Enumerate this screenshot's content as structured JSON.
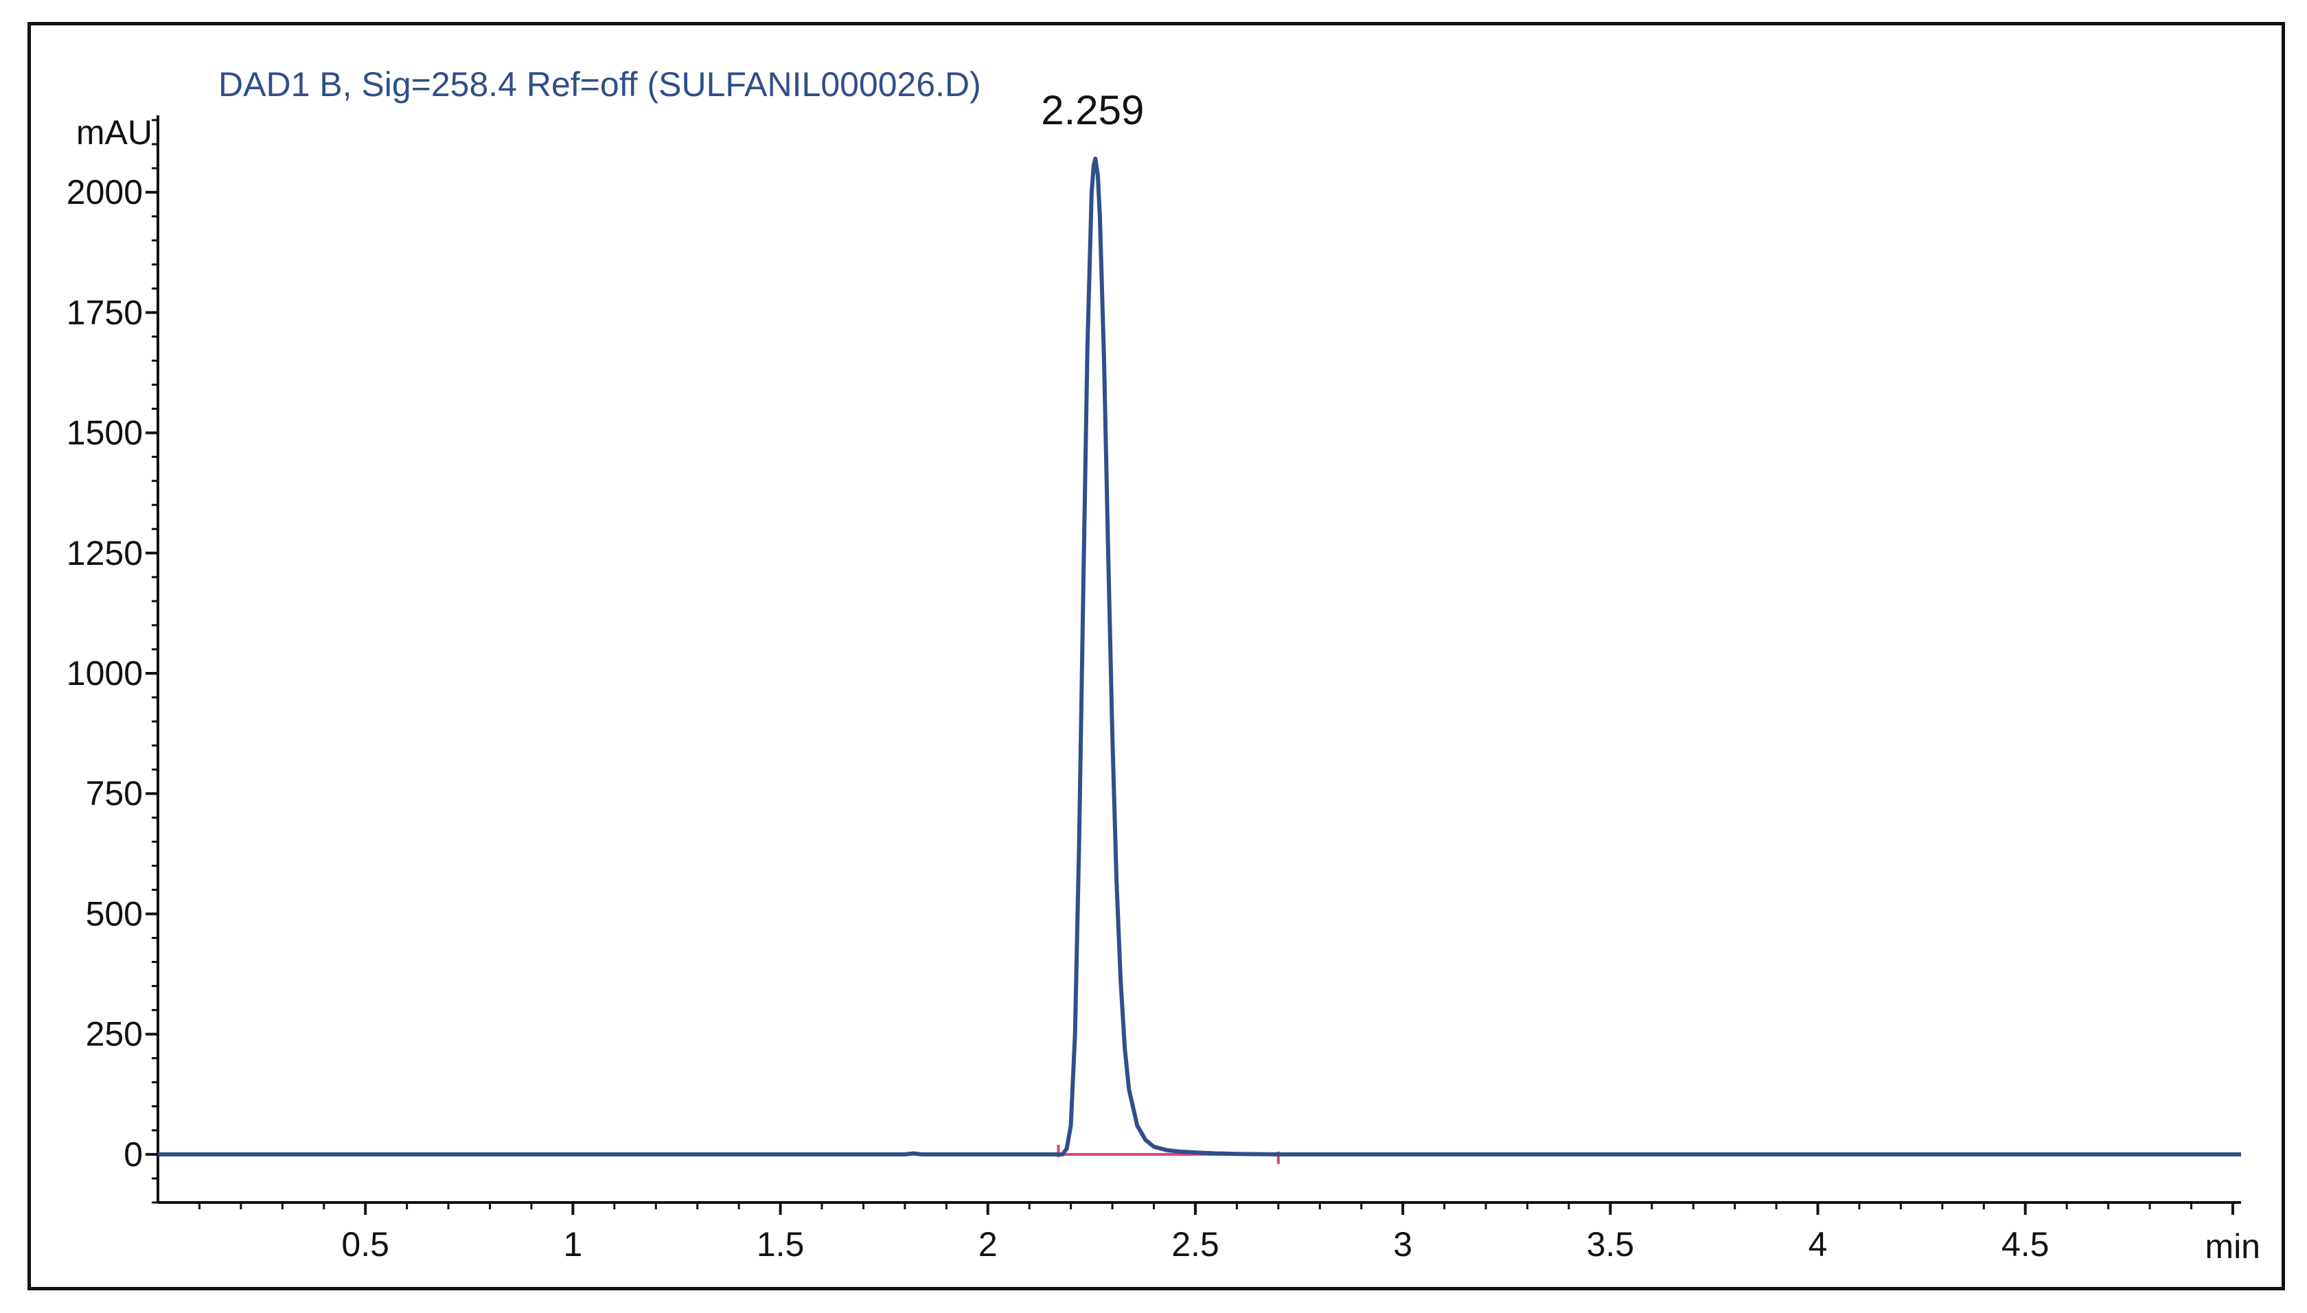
{
  "chart_data": {
    "type": "line",
    "title": "DAD1 B, Sig=258.4 Ref=off (SULFANIL000026.D)",
    "xlabel": "min",
    "ylabel": "mAU",
    "xlim": [
      0,
      5.02
    ],
    "ylim": [
      -100,
      2160
    ],
    "grid": false,
    "x_ticks": [
      0.5,
      1,
      1.5,
      2,
      2.5,
      3,
      3.5,
      4,
      4.5
    ],
    "x_tick_labels": [
      "0.5",
      "1",
      "1.5",
      "2",
      "2.5",
      "3",
      "3.5",
      "4",
      "4.5"
    ],
    "y_ticks": [
      0,
      250,
      500,
      750,
      1000,
      1250,
      1500,
      1750,
      2000
    ],
    "y_tick_labels": [
      "0",
      "250",
      "500",
      "750",
      "1000",
      "1250",
      "1500",
      "1750",
      "2000"
    ],
    "series": [
      {
        "color": "#2f4f8a",
        "x": [
          0.0,
          1.8,
          1.82,
          1.84,
          2.0,
          2.18,
          2.19,
          2.2,
          2.21,
          2.22,
          2.23,
          2.24,
          2.25,
          2.255,
          2.259,
          2.265,
          2.27,
          2.28,
          2.29,
          2.3,
          2.31,
          2.32,
          2.33,
          2.34,
          2.36,
          2.38,
          2.4,
          2.43,
          2.46,
          2.5,
          2.55,
          2.6,
          2.7,
          3.0,
          5.02
        ],
        "y": [
          0,
          0,
          2,
          0,
          0,
          0,
          12,
          60,
          250,
          650,
          1180,
          1680,
          2000,
          2055,
          2070,
          2035,
          1950,
          1650,
          1250,
          870,
          570,
          360,
          220,
          135,
          60,
          30,
          16,
          9,
          6,
          4,
          2,
          1,
          0,
          0,
          0
        ]
      }
    ],
    "baseline": {
      "color": "#e0407a",
      "x": [
        2.17,
        2.7
      ],
      "y": [
        0,
        0
      ]
    },
    "annotations": [
      {
        "text": "2.259",
        "x": 2.259,
        "y": 2070
      }
    ]
  }
}
